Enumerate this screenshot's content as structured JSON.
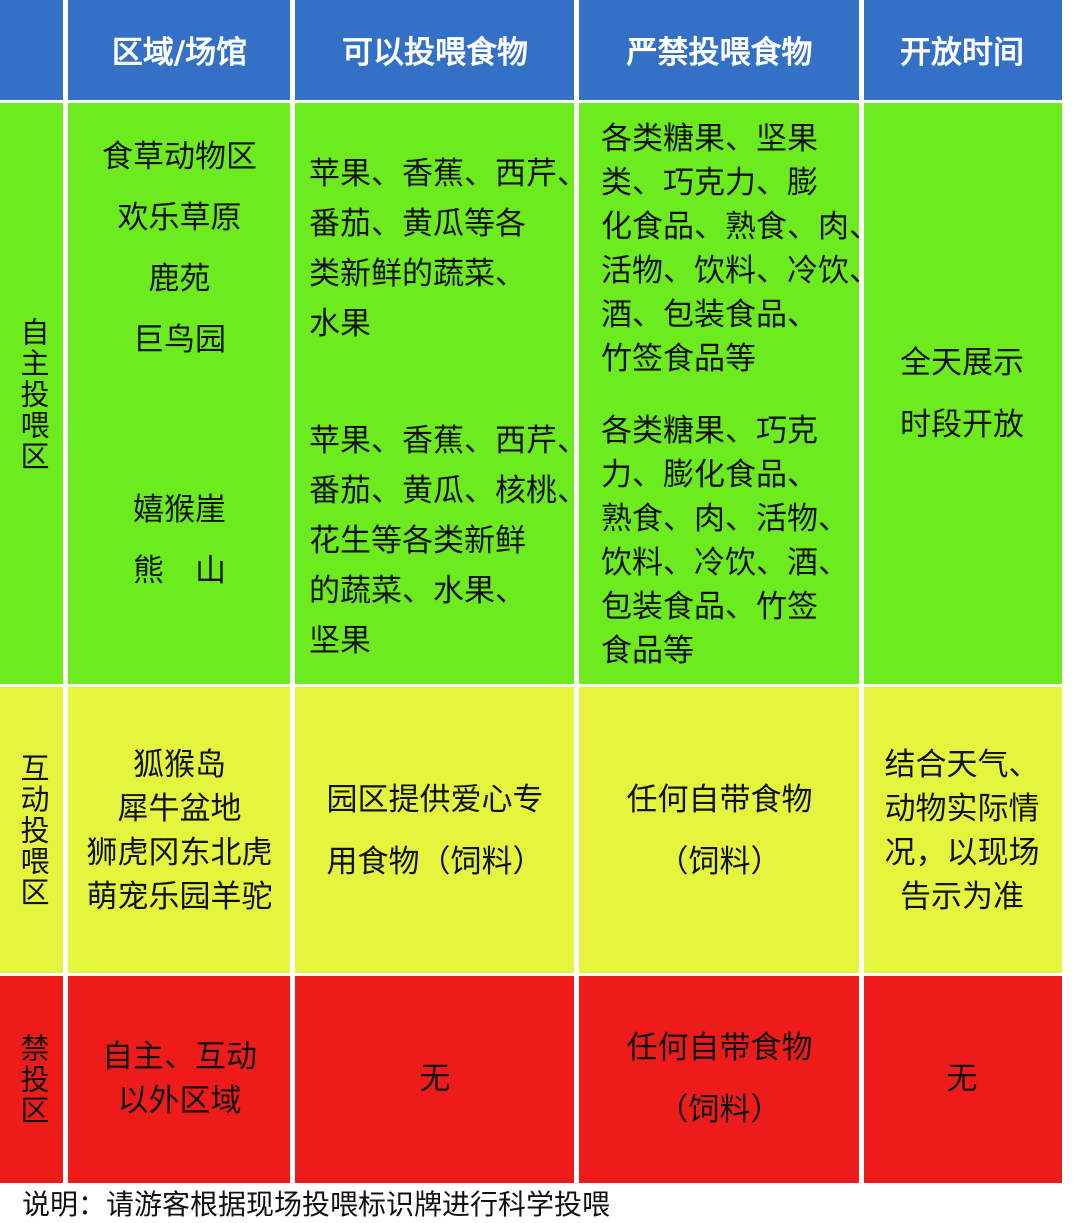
{
  "header": [
    "区域/场馆",
    "可以投喂食物",
    "严禁投喂食物",
    "开放时间"
  ],
  "sections": [
    {
      "label": "自主投喂区",
      "groups": [
        {
          "venues": [
            "食草动物区",
            "欢乐草原",
            "鹿苑",
            "巨鸟园"
          ],
          "allowed": [
            "苹果、香蕉、西芹、",
            "番茄、黄瓜等各",
            "类新鲜的蔬菜、",
            "水果"
          ],
          "forbidden": [
            "各类糖果、坚果",
            "类、巧克力、膨",
            "化食品、熟食、肉、",
            "活物、饮料、冷饮、",
            "酒、包装食品、",
            "竹签食品等"
          ]
        },
        {
          "venues": [
            "嬉猴崖",
            "熊　山"
          ],
          "allowed": [
            "苹果、香蕉、西芹、",
            "番茄、黄瓜、核桃、",
            "花生等各类新鲜",
            "的蔬菜、水果、",
            "坚果"
          ],
          "forbidden": [
            "各类糖果、巧克",
            "力、膨化食品、",
            "熟食、肉、活物、",
            "饮料、冷饮、酒、",
            "包装食品、竹签",
            "食品等"
          ]
        }
      ],
      "hours": [
        "全天展示",
        "时段开放"
      ]
    },
    {
      "label": "互动投喂区",
      "groups": [
        {
          "venues": [
            "狐猴岛",
            "犀牛盆地",
            "狮虎冈东北虎",
            "萌宠乐园羊驼"
          ],
          "allowed": [
            "园区提供爱心专",
            "用食物（饲料）"
          ],
          "forbidden": [
            "任何自带食物",
            "（饲料）"
          ]
        }
      ],
      "hours": [
        "结合天气、",
        "动物实际情",
        "况，以现场",
        "告示为准"
      ]
    },
    {
      "label": "禁投区",
      "groups": [
        {
          "venues": [
            "自主、互动",
            "以外区域"
          ],
          "allowed": [
            "无"
          ],
          "forbidden": [
            "任何自带食物",
            "（饲料）"
          ]
        }
      ],
      "hours": [
        "无"
      ]
    }
  ],
  "note": "说明：请游客根据现场投喂标识牌进行科学投喂"
}
